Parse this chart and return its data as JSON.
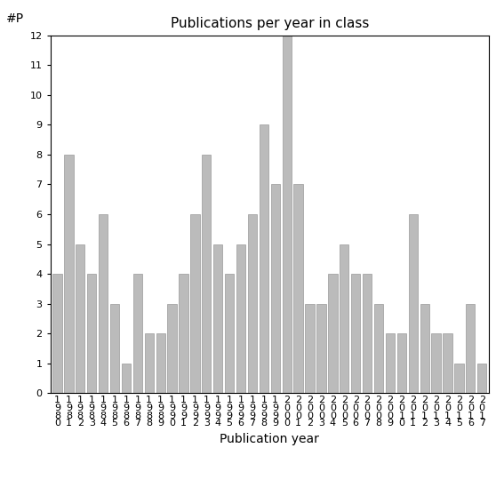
{
  "title": "Publications per year in class",
  "xlabel": "Publication year",
  "ylabel": "#P",
  "years": [
    1980,
    1981,
    1982,
    1983,
    1984,
    1985,
    1986,
    1987,
    1988,
    1989,
    1990,
    1991,
    1992,
    1993,
    1994,
    1995,
    1996,
    1997,
    1998,
    1999,
    2000,
    2001,
    2002,
    2003,
    2004,
    2005,
    2006,
    2007,
    2008,
    2009,
    2010,
    2011,
    2012,
    2013,
    2014,
    2015,
    2016,
    2017
  ],
  "values": [
    4,
    8,
    5,
    4,
    6,
    3,
    1,
    4,
    2,
    2,
    3,
    4,
    6,
    8,
    5,
    4,
    5,
    6,
    9,
    7,
    12,
    7,
    3,
    3,
    4,
    5,
    4,
    4,
    3,
    2,
    2,
    6,
    3,
    2,
    2,
    1,
    3,
    1
  ],
  "bar_color": "#bbbbbb",
  "bar_edgecolor": "#999999",
  "ylim": [
    0,
    12
  ],
  "yticks": [
    0,
    1,
    2,
    3,
    4,
    5,
    6,
    7,
    8,
    9,
    10,
    11,
    12
  ],
  "background_color": "#ffffff",
  "title_fontsize": 11,
  "axis_fontsize": 10,
  "tick_fontsize": 8,
  "bar_linewidth": 0.5
}
